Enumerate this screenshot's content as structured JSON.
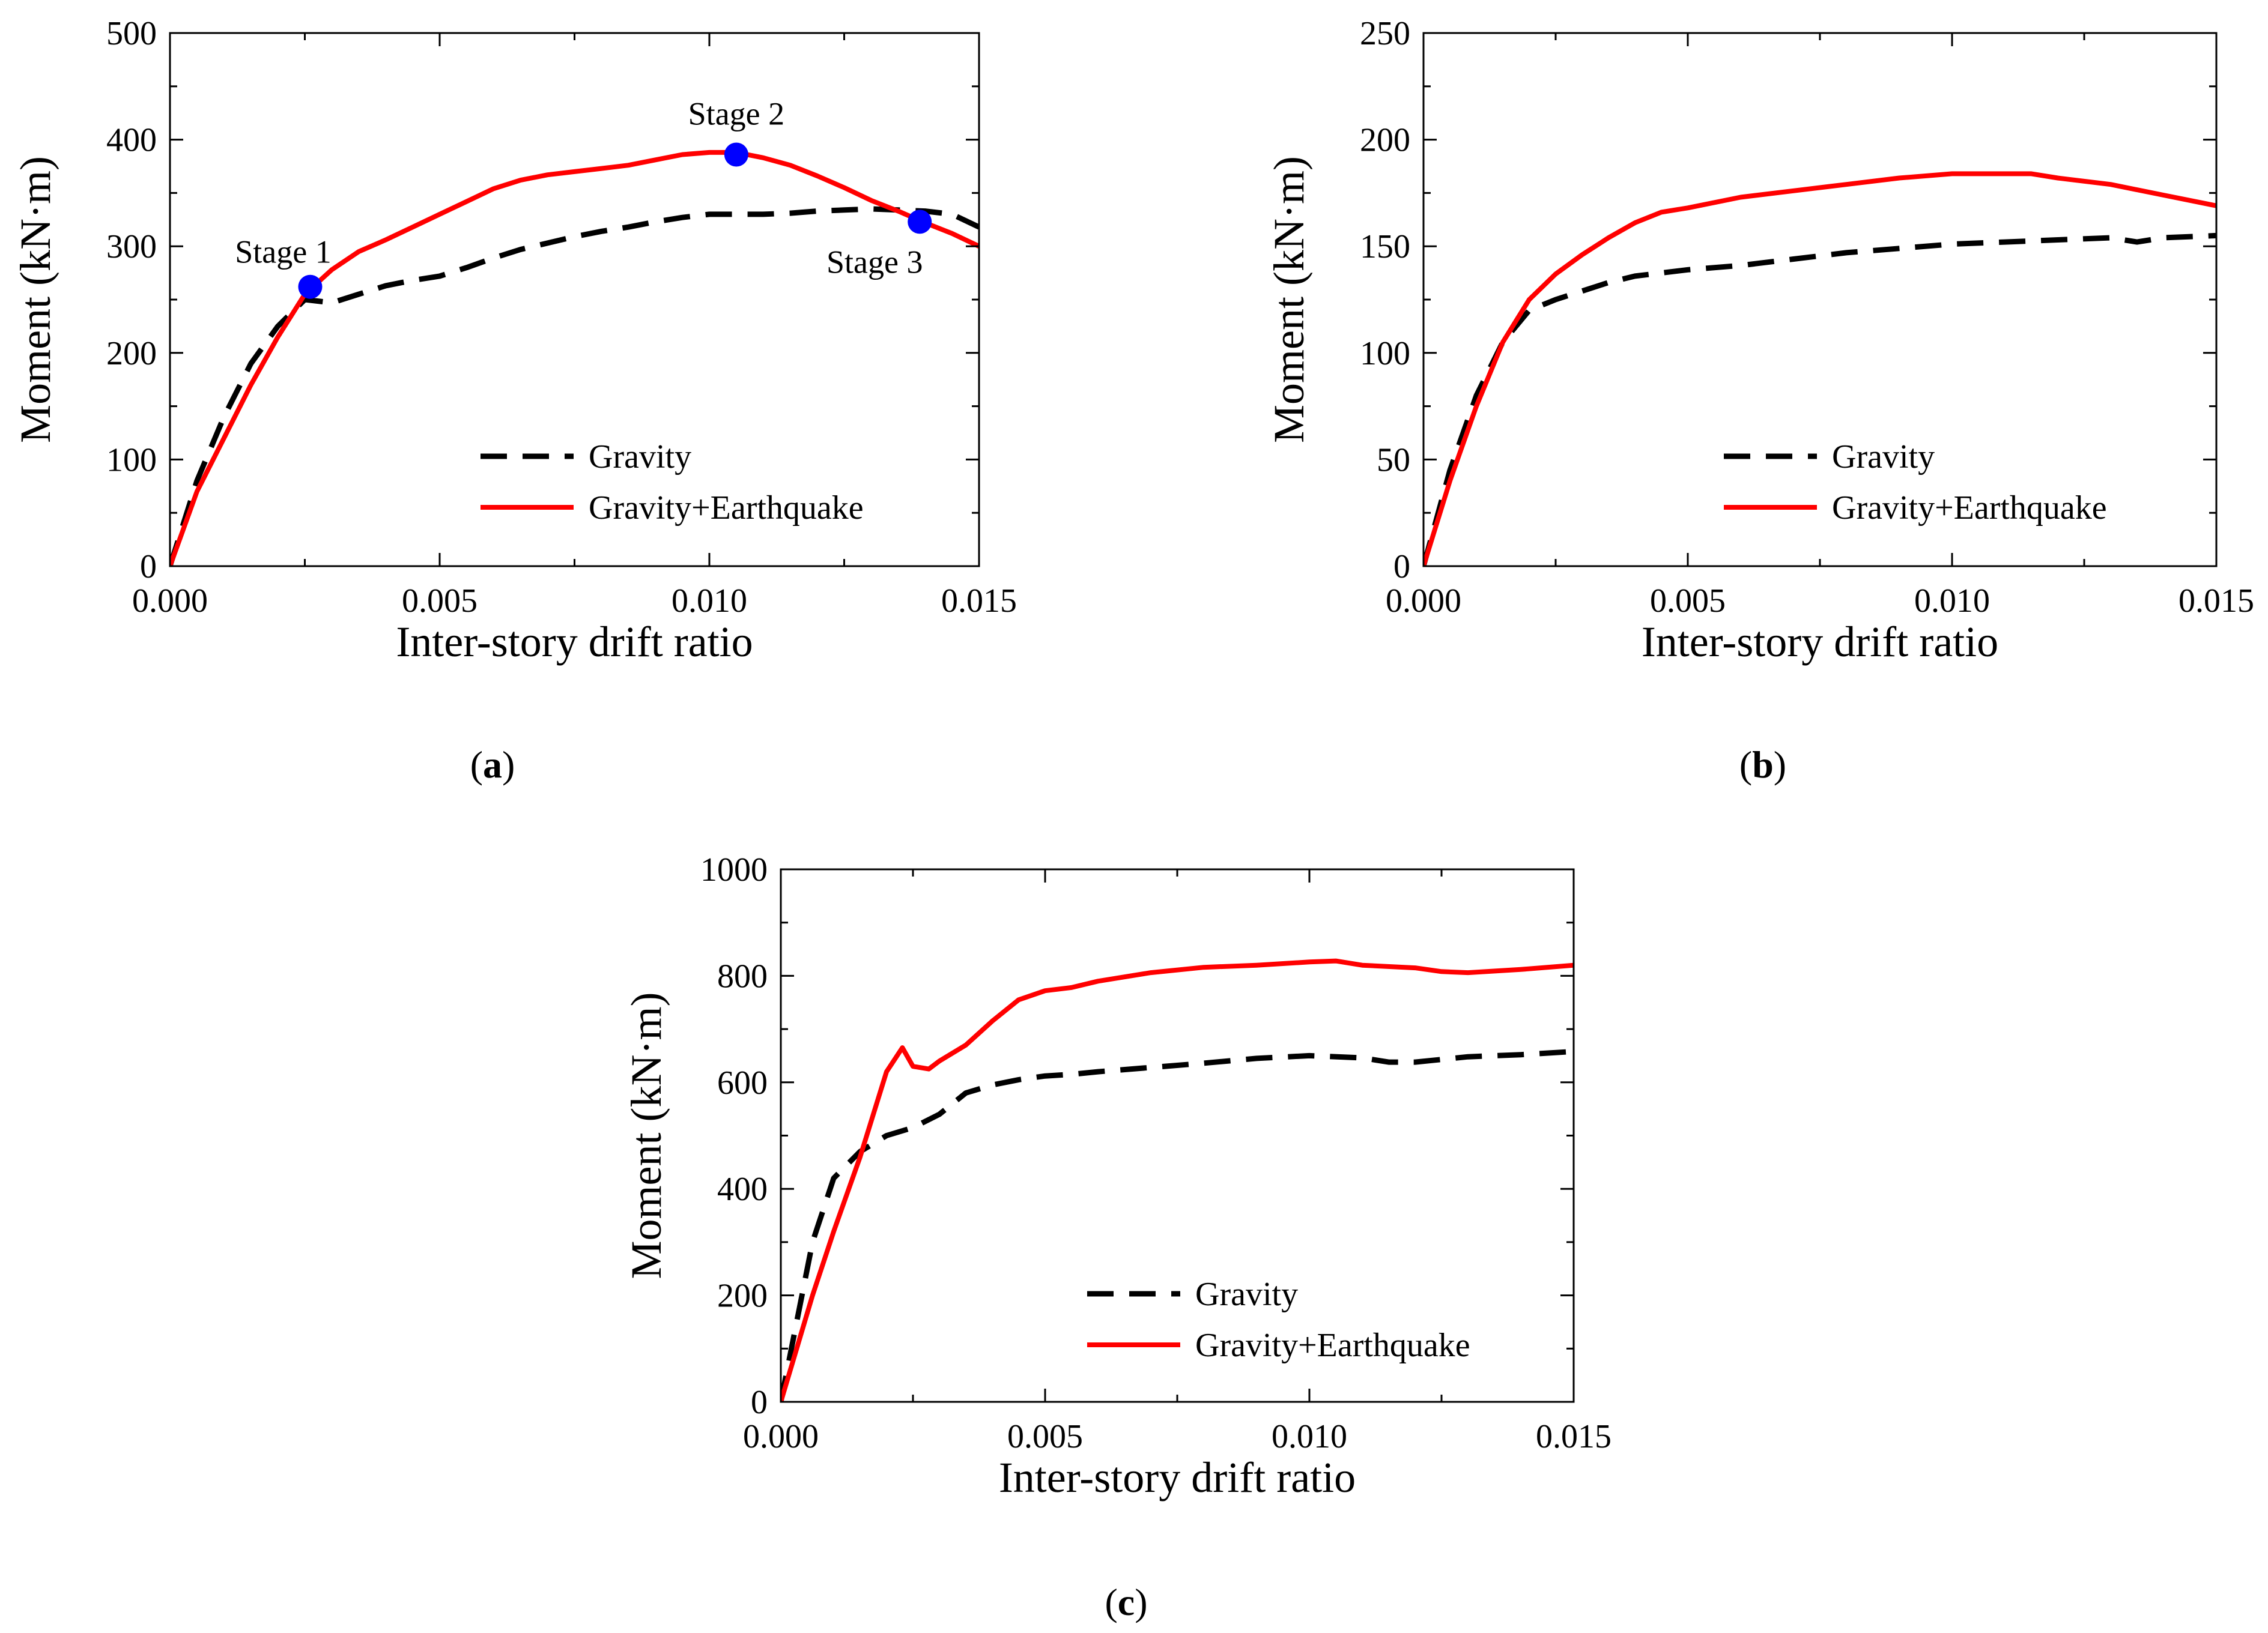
{
  "chart_data": [
    {
      "type": "line",
      "panel_label": "a",
      "xlabel": "Inter-story drift ratio",
      "ylabel": "Moment (kN·m)",
      "xlim": [
        0,
        0.015
      ],
      "ylim": [
        0,
        500
      ],
      "x_ticks": [
        "0.000",
        "0.005",
        "0.010",
        "0.015"
      ],
      "y_ticks": [
        "0",
        "100",
        "200",
        "300",
        "400",
        "500"
      ],
      "legend_position": "lower-center",
      "series": [
        {
          "name": "Gravity",
          "style": "dashed",
          "color": "#000000",
          "points": [
            [
              0,
              0
            ],
            [
              0.0005,
              80
            ],
            [
              0.001,
              140
            ],
            [
              0.0015,
              190
            ],
            [
              0.002,
              225
            ],
            [
              0.0025,
              250
            ],
            [
              0.003,
              247
            ],
            [
              0.0035,
              255
            ],
            [
              0.004,
              263
            ],
            [
              0.0045,
              268
            ],
            [
              0.005,
              272
            ],
            [
              0.0055,
              280
            ],
            [
              0.006,
              289
            ],
            [
              0.0065,
              297
            ],
            [
              0.007,
              303
            ],
            [
              0.0075,
              309
            ],
            [
              0.008,
              314
            ],
            [
              0.0085,
              318
            ],
            [
              0.009,
              323
            ],
            [
              0.0095,
              327
            ],
            [
              0.01,
              330
            ],
            [
              0.0105,
              330
            ],
            [
              0.011,
              330
            ],
            [
              0.0115,
              331
            ],
            [
              0.012,
              333
            ],
            [
              0.0125,
              334
            ],
            [
              0.013,
              335
            ],
            [
              0.0135,
              334
            ],
            [
              0.014,
              333
            ],
            [
              0.0145,
              330
            ],
            [
              0.015,
              318
            ]
          ]
        },
        {
          "name": "Gravity+Earthquake",
          "style": "solid",
          "color": "#ff0000",
          "points": [
            [
              0,
              0
            ],
            [
              0.0005,
              70
            ],
            [
              0.001,
              120
            ],
            [
              0.0015,
              170
            ],
            [
              0.002,
              215
            ],
            [
              0.0025,
              255
            ],
            [
              0.003,
              278
            ],
            [
              0.0035,
              295
            ],
            [
              0.004,
              306
            ],
            [
              0.0045,
              318
            ],
            [
              0.005,
              330
            ],
            [
              0.0055,
              342
            ],
            [
              0.006,
              354
            ],
            [
              0.0065,
              362
            ],
            [
              0.007,
              367
            ],
            [
              0.0075,
              370
            ],
            [
              0.008,
              373
            ],
            [
              0.0085,
              376
            ],
            [
              0.009,
              381
            ],
            [
              0.0095,
              386
            ],
            [
              0.01,
              388
            ],
            [
              0.0105,
              388
            ],
            [
              0.011,
              383
            ],
            [
              0.0115,
              376
            ],
            [
              0.012,
              366
            ],
            [
              0.0125,
              355
            ],
            [
              0.013,
              343
            ],
            [
              0.0135,
              333
            ],
            [
              0.014,
              322
            ],
            [
              0.0145,
              312
            ],
            [
              0.015,
              300
            ]
          ]
        }
      ],
      "markers": [
        {
          "label": "Stage 1",
          "x": 0.0026,
          "y": 262,
          "color": "#0000ff"
        },
        {
          "label": "Stage 2",
          "x": 0.0105,
          "y": 386,
          "color": "#0000ff"
        },
        {
          "label": "Stage 3",
          "x": 0.0139,
          "y": 323,
          "color": "#0000ff"
        }
      ]
    },
    {
      "type": "line",
      "panel_label": "b",
      "xlabel": "Inter-story drift ratio",
      "ylabel": "Moment (kN·m)",
      "xlim": [
        0,
        0.015
      ],
      "ylim": [
        0,
        250
      ],
      "x_ticks": [
        "0.000",
        "0.005",
        "0.010",
        "0.015"
      ],
      "y_ticks": [
        "0",
        "50",
        "100",
        "150",
        "200",
        "250"
      ],
      "legend_position": "lower-center",
      "series": [
        {
          "name": "Gravity",
          "style": "dashed",
          "color": "#000000",
          "points": [
            [
              0,
              0
            ],
            [
              0.0005,
              45
            ],
            [
              0.001,
              80
            ],
            [
              0.0015,
              105
            ],
            [
              0.002,
              120
            ],
            [
              0.0025,
              125
            ],
            [
              0.003,
              129
            ],
            [
              0.0035,
              133
            ],
            [
              0.004,
              136
            ],
            [
              0.005,
              139
            ],
            [
              0.006,
              141
            ],
            [
              0.007,
              144
            ],
            [
              0.008,
              147
            ],
            [
              0.009,
              149
            ],
            [
              0.01,
              151
            ],
            [
              0.011,
              152
            ],
            [
              0.012,
              153
            ],
            [
              0.013,
              154
            ],
            [
              0.0135,
              152
            ],
            [
              0.014,
              154
            ],
            [
              0.015,
              155
            ]
          ]
        },
        {
          "name": "Gravity+Earthquake",
          "style": "solid",
          "color": "#ff0000",
          "points": [
            [
              0,
              0
            ],
            [
              0.0005,
              40
            ],
            [
              0.001,
              75
            ],
            [
              0.0015,
              105
            ],
            [
              0.002,
              125
            ],
            [
              0.0025,
              137
            ],
            [
              0.003,
              146
            ],
            [
              0.0035,
              154
            ],
            [
              0.004,
              161
            ],
            [
              0.0045,
              166
            ],
            [
              0.005,
              168
            ],
            [
              0.006,
              173
            ],
            [
              0.007,
              176
            ],
            [
              0.008,
              179
            ],
            [
              0.009,
              182
            ],
            [
              0.01,
              184
            ],
            [
              0.011,
              184
            ],
            [
              0.0115,
              184
            ],
            [
              0.012,
              182
            ],
            [
              0.013,
              179
            ],
            [
              0.014,
              174
            ],
            [
              0.015,
              169
            ]
          ]
        }
      ],
      "markers": []
    },
    {
      "type": "line",
      "panel_label": "c",
      "xlabel": "Inter-story drift ratio",
      "ylabel": "Moment (kN·m)",
      "xlim": [
        0,
        0.015
      ],
      "ylim": [
        0,
        1000
      ],
      "x_ticks": [
        "0.000",
        "0.005",
        "0.010",
        "0.015"
      ],
      "y_ticks": [
        "0",
        "200",
        "400",
        "600",
        "800",
        "1000"
      ],
      "legend_position": "lower-center",
      "series": [
        {
          "name": "Gravity",
          "style": "dashed",
          "color": "#000000",
          "points": [
            [
              0,
              0
            ],
            [
              0.0003,
              150
            ],
            [
              0.0006,
              300
            ],
            [
              0.001,
              420
            ],
            [
              0.0015,
              470
            ],
            [
              0.002,
              500
            ],
            [
              0.0025,
              515
            ],
            [
              0.003,
              540
            ],
            [
              0.0035,
              580
            ],
            [
              0.004,
              595
            ],
            [
              0.0045,
              605
            ],
            [
              0.005,
              612
            ],
            [
              0.0055,
              615
            ],
            [
              0.006,
              620
            ],
            [
              0.007,
              628
            ],
            [
              0.008,
              636
            ],
            [
              0.009,
              645
            ],
            [
              0.01,
              650
            ],
            [
              0.011,
              646
            ],
            [
              0.0115,
              638
            ],
            [
              0.012,
              638
            ],
            [
              0.0125,
              643
            ],
            [
              0.013,
              648
            ],
            [
              0.014,
              652
            ],
            [
              0.015,
              658
            ]
          ]
        },
        {
          "name": "Gravity+Earthquake",
          "style": "solid",
          "color": "#ff0000",
          "points": [
            [
              0,
              0
            ],
            [
              0.0003,
              100
            ],
            [
              0.0006,
              200
            ],
            [
              0.001,
              320
            ],
            [
              0.0015,
              460
            ],
            [
              0.002,
              620
            ],
            [
              0.0023,
              665
            ],
            [
              0.0025,
              630
            ],
            [
              0.0028,
              625
            ],
            [
              0.003,
              640
            ],
            [
              0.0035,
              670
            ],
            [
              0.004,
              715
            ],
            [
              0.0045,
              755
            ],
            [
              0.005,
              772
            ],
            [
              0.0055,
              778
            ],
            [
              0.006,
              790
            ],
            [
              0.007,
              806
            ],
            [
              0.008,
              816
            ],
            [
              0.009,
              820
            ],
            [
              0.01,
              826
            ],
            [
              0.0105,
              828
            ],
            [
              0.011,
              820
            ],
            [
              0.012,
              815
            ],
            [
              0.0125,
              808
            ],
            [
              0.013,
              806
            ],
            [
              0.014,
              812
            ],
            [
              0.015,
              820
            ]
          ]
        }
      ],
      "markers": []
    }
  ]
}
